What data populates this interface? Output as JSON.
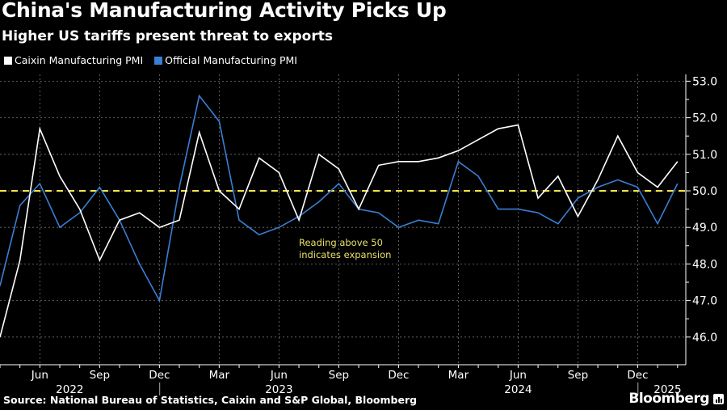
{
  "header": {
    "title": "China's Manufacturing Activity Picks Up",
    "subtitle": "Higher US tariffs present threat to exports"
  },
  "footer": {
    "source": "Source: National Bureau of Statistics, Caixin and S&P Global, Bloomberg",
    "brand": "Bloomberg"
  },
  "chart_data": {
    "type": "line",
    "title": "China's Manufacturing Activity Picks Up",
    "subtitle": "Higher US tariffs present threat to exports",
    "xlabel": "",
    "ylabel": "",
    "legend_position": "top-left",
    "grid": true,
    "ylim": [
      45.6,
      53.3
    ],
    "yticks": [
      "53.0",
      "52.0",
      "51.0",
      "50.0",
      "49.0",
      "48.0",
      "47.0",
      "46.0"
    ],
    "ytick_values": [
      53,
      52,
      51,
      50,
      49,
      48,
      47,
      46
    ],
    "x": [
      "2022-04",
      "2022-05",
      "2022-06",
      "2022-07",
      "2022-08",
      "2022-09",
      "2022-10",
      "2022-11",
      "2022-12",
      "2023-01",
      "2023-02",
      "2023-03",
      "2023-04",
      "2023-05",
      "2023-06",
      "2023-07",
      "2023-08",
      "2023-09",
      "2023-10",
      "2023-11",
      "2023-12",
      "2024-01",
      "2024-02",
      "2024-03",
      "2024-04",
      "2024-05",
      "2024-06",
      "2024-07",
      "2024-08",
      "2024-09",
      "2024-10",
      "2024-11",
      "2024-12",
      "2025-01",
      "2025-02"
    ],
    "xticks": [
      {
        "index": 2,
        "label": "Jun"
      },
      {
        "index": 5,
        "label": "Sep"
      },
      {
        "index": 8,
        "label": "Dec"
      },
      {
        "index": 11,
        "label": "Mar"
      },
      {
        "index": 14,
        "label": "Jun"
      },
      {
        "index": 17,
        "label": "Sep"
      },
      {
        "index": 20,
        "label": "Dec"
      },
      {
        "index": 23,
        "label": "Mar"
      },
      {
        "index": 26,
        "label": "Jun"
      },
      {
        "index": 29,
        "label": "Sep"
      },
      {
        "index": 32,
        "label": "Dec"
      }
    ],
    "year_labels": [
      {
        "index": 3.5,
        "label": "2022"
      },
      {
        "index": 14,
        "label": "2023"
      },
      {
        "index": 26,
        "label": "2024"
      },
      {
        "index": 33.5,
        "label": "2025"
      }
    ],
    "year_dividers": [
      8.5,
      32.5
    ],
    "series": [
      {
        "name": "Caixin Manufacturing PMI",
        "color": "#ffffff",
        "values": [
          46.0,
          48.1,
          51.7,
          50.4,
          49.5,
          48.1,
          49.2,
          49.4,
          49.0,
          49.2,
          51.6,
          50.0,
          49.5,
          50.9,
          50.5,
          49.2,
          51.0,
          50.6,
          49.5,
          50.7,
          50.8,
          50.8,
          50.9,
          51.1,
          51.4,
          51.7,
          51.8,
          49.8,
          50.4,
          49.3,
          50.3,
          51.5,
          50.5,
          50.1,
          50.8
        ]
      },
      {
        "name": "Official Manufacturing PMI",
        "color": "#3a7fd5",
        "values": [
          47.4,
          49.6,
          50.2,
          49.0,
          49.4,
          50.1,
          49.2,
          48.0,
          47.0,
          50.1,
          52.6,
          51.9,
          49.2,
          48.8,
          49.0,
          49.3,
          49.7,
          50.2,
          49.5,
          49.4,
          49.0,
          49.2,
          49.1,
          50.8,
          50.4,
          49.5,
          49.5,
          49.4,
          49.1,
          49.8,
          50.1,
          50.3,
          50.1,
          49.1,
          50.2
        ]
      }
    ],
    "reference_line": {
      "value": 50,
      "color": "#f2e64b",
      "style": "dashed"
    },
    "annotation": {
      "text": "Reading above 50\nindicates expansion",
      "color": "#e8e06a"
    }
  }
}
